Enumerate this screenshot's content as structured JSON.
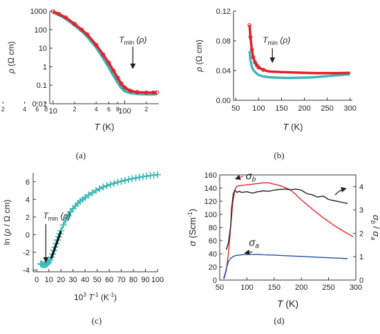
{
  "colors": {
    "red": "#e4202a",
    "cyan": "#3cb8b6",
    "black": "#222222",
    "blue": "#1e4fa6"
  },
  "chart_data": [
    {
      "panel": "a",
      "type": "line",
      "caption": "(a)",
      "xlabel": "T (K)",
      "ylabel": "ρ (Ω cm)",
      "x_scale": "log",
      "y_scale": "log",
      "xlim": [
        9,
        300
      ],
      "ylim": [
        0.01,
        1000
      ],
      "x_ticks_major": [
        {
          "v": 10,
          "label": "10"
        },
        {
          "v": 100,
          "label": "100"
        }
      ],
      "x_ticks_minor": [
        {
          "v": 2,
          "label": "2"
        },
        {
          "v": 4,
          "label": "4"
        },
        {
          "v": 6,
          "label": "6"
        },
        {
          "v": 8,
          "label": "8"
        },
        {
          "v": 20,
          "label": "2"
        },
        {
          "v": 40,
          "label": "4"
        },
        {
          "v": 60,
          "label": "6"
        },
        {
          "v": 80,
          "label": "8"
        },
        {
          "v": 200,
          "label": "2"
        }
      ],
      "y_ticks": [
        {
          "v": 1000,
          "label": "1000"
        },
        {
          "v": 100,
          "label": "100"
        },
        {
          "v": 10,
          "label": "10"
        },
        {
          "v": 1,
          "label": "1"
        },
        {
          "v": 0.1,
          "label": "0.1"
        },
        {
          "v": 0.01,
          "label": "0.01"
        }
      ],
      "annotation": {
        "text": "T",
        "sub": "min",
        "suffix": "(ρ)",
        "arrow_x": 130,
        "arrow_y_from": 12,
        "arrow_y_to": 0.8
      },
      "series": [
        {
          "color_key": "cyan",
          "marker": "line",
          "x": [
            10,
            12,
            15,
            20,
            25,
            30,
            40,
            50,
            60,
            70,
            80,
            90,
            100,
            120,
            150,
            200,
            250,
            280
          ],
          "y": [
            900,
            650,
            420,
            180,
            90,
            45,
            12,
            3.2,
            1.0,
            0.35,
            0.15,
            0.075,
            0.05,
            0.04,
            0.036,
            0.034,
            0.034,
            0.035
          ]
        },
        {
          "color_key": "red",
          "marker": "circle",
          "x": [
            10,
            12,
            15,
            20,
            25,
            30,
            40,
            50,
            60,
            70,
            80,
            90,
            100,
            120,
            150,
            200,
            250,
            280
          ],
          "y": [
            950,
            700,
            450,
            200,
            100,
            55,
            15,
            4.5,
            1.6,
            0.6,
            0.25,
            0.12,
            0.075,
            0.05,
            0.042,
            0.04,
            0.04,
            0.04
          ]
        }
      ]
    },
    {
      "panel": "b",
      "type": "line",
      "caption": "(b)",
      "xlabel": "T (K)",
      "ylabel": "ρ (Ω cm)",
      "xlim": [
        45,
        305
      ],
      "ylim": [
        0,
        0.12
      ],
      "x_ticks": [
        {
          "v": 50,
          "label": "50"
        },
        {
          "v": 100,
          "label": "100"
        },
        {
          "v": 150,
          "label": "150"
        },
        {
          "v": 200,
          "label": "200"
        },
        {
          "v": 250,
          "label": "250"
        },
        {
          "v": 300,
          "label": "300"
        }
      ],
      "y_ticks": [
        {
          "v": 0,
          "label": "0.00"
        },
        {
          "v": 0.04,
          "label": "0.04"
        },
        {
          "v": 0.08,
          "label": "0.08"
        },
        {
          "v": 0.12,
          "label": "0.12"
        }
      ],
      "annotation": {
        "text": "T",
        "sub": "min",
        "suffix": "(ρ)",
        "arrow_x": 130,
        "arrow_y_from": 0.07,
        "arrow_y_to": 0.051
      },
      "series": [
        {
          "color_key": "red",
          "marker": "circle",
          "x": [
            80,
            82,
            85,
            88,
            92,
            96,
            100,
            110,
            120,
            130,
            150,
            175,
            200,
            225,
            250,
            275,
            300
          ],
          "y": [
            0.101,
            0.085,
            0.068,
            0.058,
            0.051,
            0.047,
            0.044,
            0.041,
            0.039,
            0.0385,
            0.038,
            0.0375,
            0.037,
            0.0365,
            0.0365,
            0.0365,
            0.037
          ]
        },
        {
          "color_key": "cyan",
          "marker": "line",
          "x": [
            80,
            82,
            85,
            88,
            92,
            96,
            100,
            110,
            125,
            140,
            160,
            180,
            200,
            220,
            240,
            260,
            280,
            300
          ],
          "y": [
            0.066,
            0.054,
            0.045,
            0.041,
            0.038,
            0.036,
            0.034,
            0.032,
            0.031,
            0.0305,
            0.03,
            0.0302,
            0.0305,
            0.031,
            0.032,
            0.033,
            0.034,
            0.035
          ]
        }
      ]
    },
    {
      "panel": "c",
      "type": "scatter",
      "caption": "(c)",
      "xlabel": "10³ T⁻¹ (K⁻¹)",
      "ylabel": "ln (ρ / Ω cm)",
      "xlim": [
        -3,
        100
      ],
      "ylim": [
        -4.2,
        7
      ],
      "x_ticks": [
        {
          "v": 0,
          "label": "0"
        },
        {
          "v": 10,
          "label": "10"
        },
        {
          "v": 20,
          "label": "20"
        },
        {
          "v": 30,
          "label": "30"
        },
        {
          "v": 40,
          "label": "40"
        },
        {
          "v": 50,
          "label": "50"
        },
        {
          "v": 60,
          "label": "60"
        },
        {
          "v": 70,
          "label": "70"
        },
        {
          "v": 80,
          "label": "80"
        },
        {
          "v": 90,
          "label": "90"
        },
        {
          "v": 100,
          "label": "100"
        }
      ],
      "y_ticks": [
        {
          "v": -4,
          "label": "-4"
        },
        {
          "v": -2,
          "label": "-2"
        },
        {
          "v": 0,
          "label": "0"
        },
        {
          "v": 2,
          "label": "2"
        },
        {
          "v": 4,
          "label": "4"
        },
        {
          "v": 6,
          "label": "6"
        }
      ],
      "annotation": {
        "text": "T",
        "sub": "min",
        "suffix": "(ρ)",
        "arrow_x": 7.5,
        "arrow_y_from": 1.2,
        "arrow_y_to": -3.1
      },
      "fit_line": {
        "x": [
          12,
          20
        ],
        "y": [
          -2.7,
          0.4
        ]
      },
      "series": [
        {
          "color_key": "cyan",
          "marker": "plus",
          "x": [
            3.3,
            4,
            5,
            6,
            7,
            8,
            9,
            10,
            11,
            12,
            13,
            14,
            15,
            16,
            17,
            18,
            19,
            20,
            22,
            24,
            26,
            28,
            30,
            32,
            34,
            36,
            38,
            40,
            43,
            46,
            49,
            52,
            55,
            58,
            61,
            64,
            67,
            70,
            73,
            76,
            79,
            82,
            85,
            88,
            91,
            94,
            97,
            100
          ],
          "y": [
            -3.3,
            -3.35,
            -3.4,
            -3.42,
            -3.4,
            -3.35,
            -3.25,
            -3.1,
            -2.85,
            -2.55,
            -2.2,
            -1.8,
            -1.4,
            -1.0,
            -0.6,
            -0.25,
            0.1,
            0.45,
            1.1,
            1.65,
            2.15,
            2.6,
            2.95,
            3.25,
            3.55,
            3.8,
            4.0,
            4.2,
            4.5,
            4.75,
            5.0,
            5.2,
            5.4,
            5.55,
            5.7,
            5.82,
            5.95,
            6.05,
            6.15,
            6.25,
            6.35,
            6.42,
            6.5,
            6.57,
            6.63,
            6.7,
            6.75,
            6.8
          ]
        }
      ]
    },
    {
      "panel": "d",
      "type": "line",
      "caption": "(d)",
      "xlabel": "T (K)",
      "ylabel_left": "σ (Scm⁻¹)",
      "ylabel_right": "σb / σa",
      "xlim": [
        50,
        300
      ],
      "ylim_left": [
        0,
        160
      ],
      "ylim_right": [
        0,
        4.5
      ],
      "x_ticks": [
        {
          "v": 50,
          "label": "50"
        },
        {
          "v": 100,
          "label": "100"
        },
        {
          "v": 150,
          "label": "150"
        },
        {
          "v": 200,
          "label": "200"
        },
        {
          "v": 250,
          "label": "250"
        },
        {
          "v": 300,
          "label": "300"
        }
      ],
      "y_ticks_left": [
        {
          "v": 0,
          "label": "0"
        },
        {
          "v": 20,
          "label": "20"
        },
        {
          "v": 40,
          "label": "40"
        },
        {
          "v": 60,
          "label": "60"
        },
        {
          "v": 80,
          "label": "80"
        },
        {
          "v": 100,
          "label": "100"
        },
        {
          "v": 120,
          "label": "120"
        },
        {
          "v": 140,
          "label": "140"
        },
        {
          "v": 160,
          "label": "160"
        }
      ],
      "y_ticks_right": [
        {
          "v": 0,
          "label": "0"
        },
        {
          "v": 1,
          "label": "1"
        },
        {
          "v": 2,
          "label": "2"
        },
        {
          "v": 3,
          "label": "3"
        },
        {
          "v": 4,
          "label": "4"
        }
      ],
      "labels": {
        "sigma_b": "σb",
        "sigma_a": "σa"
      },
      "series": [
        {
          "name": "σb",
          "axis": "left",
          "color_key": "red",
          "x": [
            58,
            62,
            66,
            70,
            74,
            78,
            82,
            90,
            100,
            110,
            120,
            130,
            140,
            150,
            160,
            170,
            180,
            190,
            200,
            220,
            240,
            260,
            280,
            295
          ],
          "y": [
            2,
            15,
            40,
            80,
            118,
            138,
            143,
            144,
            145,
            146,
            147,
            148,
            148,
            146,
            144,
            141,
            137,
            130,
            122,
            108,
            95,
            83,
            73,
            66
          ]
        },
        {
          "name": "σb/σa",
          "axis": "right",
          "color_key": "black",
          "x": [
            62,
            66,
            70,
            72,
            75,
            78,
            82,
            86,
            90,
            100,
            110,
            120,
            130,
            140,
            150,
            160,
            170,
            180,
            190,
            200,
            210,
            220,
            230,
            240,
            250,
            260,
            270,
            280,
            285
          ],
          "y": [
            1.3,
            1.6,
            2.3,
            3.1,
            3.7,
            3.85,
            3.75,
            3.8,
            3.75,
            3.78,
            3.72,
            3.78,
            3.82,
            3.8,
            3.85,
            3.88,
            3.9,
            3.86,
            3.9,
            3.85,
            3.7,
            3.65,
            3.55,
            3.6,
            3.45,
            3.4,
            3.35,
            3.3,
            3.28
          ]
        },
        {
          "name": "σa",
          "axis": "left",
          "color_key": "blue",
          "x": [
            57,
            60,
            63,
            66,
            70,
            75,
            80,
            90,
            100,
            110,
            120,
            130,
            150,
            175,
            200,
            225,
            250,
            275,
            285
          ],
          "y": [
            2,
            10,
            20,
            28,
            33,
            36,
            37.5,
            38.5,
            39,
            39,
            39,
            38.5,
            38,
            37,
            36,
            35,
            34,
            33,
            32.5
          ]
        }
      ]
    }
  ]
}
